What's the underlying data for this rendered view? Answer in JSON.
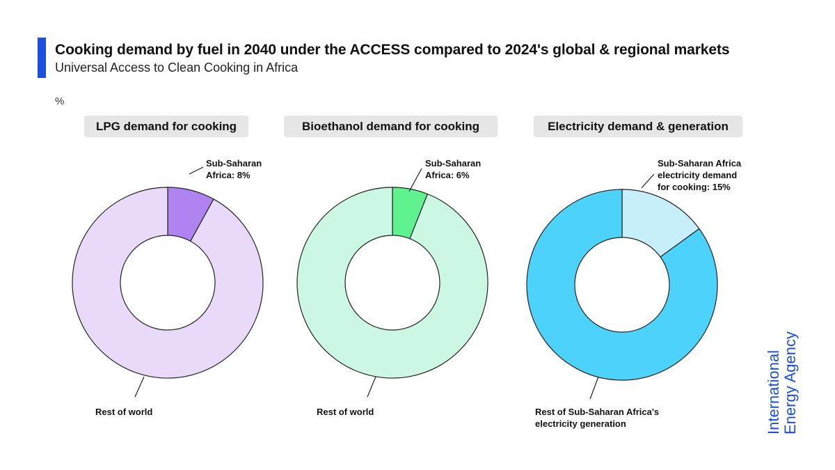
{
  "header": {
    "title": "Cooking demand by fuel in 2040 under the ACCESS compared to 2024's global & regional markets",
    "subtitle": "Universal Access to Clean Cooking in Africa",
    "unit_label": "%",
    "accent_color": "#1a4fe0"
  },
  "logo": {
    "line1": "International",
    "line2": "Energy Agency",
    "color": "#1a4fe0"
  },
  "chart_data": [
    {
      "type": "pie",
      "variant": "donut",
      "title": "LPG demand for cooking",
      "slices": [
        {
          "label": "Sub-Saharan Africa: 8%",
          "value": 8,
          "color": "#b084f0"
        },
        {
          "label": "Rest of world",
          "value": 92,
          "color": "#e8daf8"
        }
      ]
    },
    {
      "type": "pie",
      "variant": "donut",
      "title": "Bioethanol demand for cooking",
      "slices": [
        {
          "label": "Sub-Saharan Africa: 6%",
          "value": 6,
          "color": "#5ff28f"
        },
        {
          "label": "Rest of world",
          "value": 94,
          "color": "#ccf7e2"
        }
      ]
    },
    {
      "type": "pie",
      "variant": "donut",
      "title": "Electricity demand & generation",
      "slices": [
        {
          "label": "Sub-Saharan Africa electricity demand for cooking: 15%",
          "value": 15,
          "color": "#c6eefb"
        },
        {
          "label": "Rest of Sub-Saharan Africa's electricity generation",
          "value": 85,
          "color": "#4dd3fb"
        }
      ]
    }
  ]
}
